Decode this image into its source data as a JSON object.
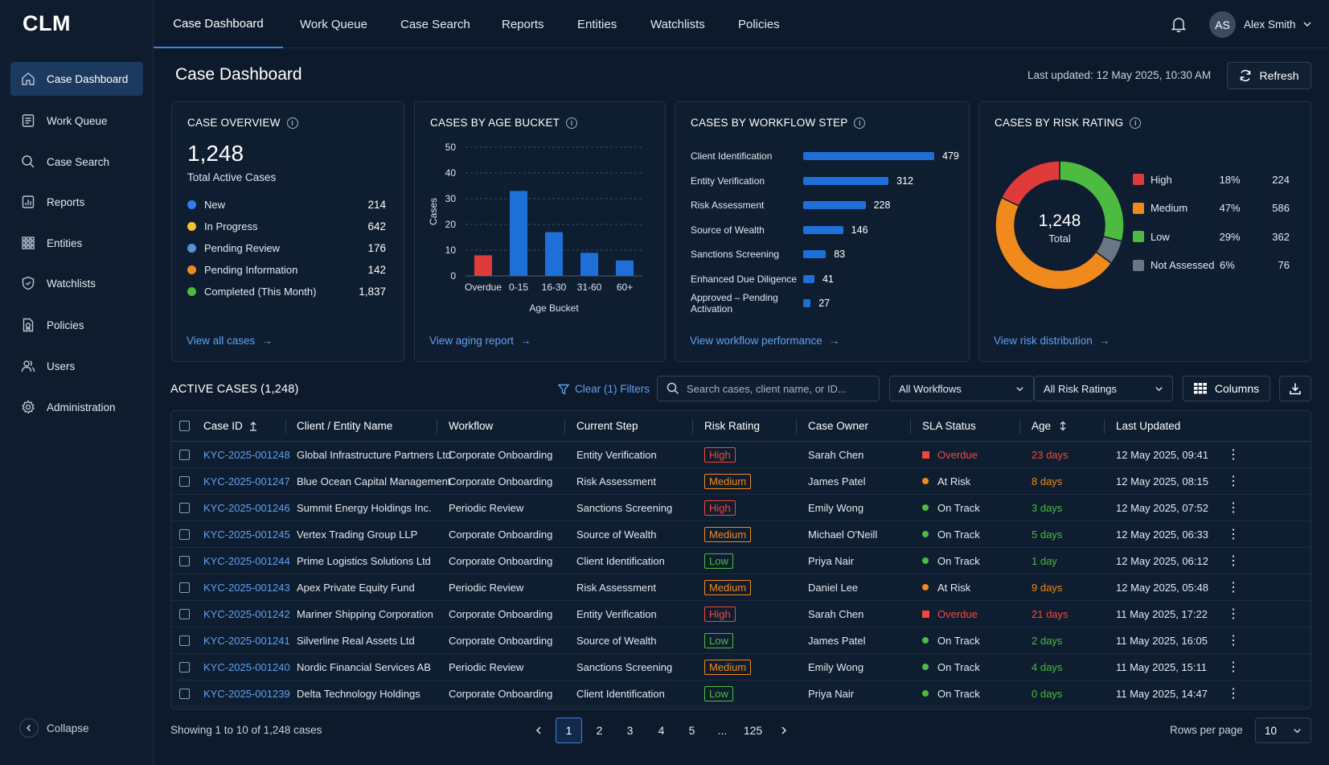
{
  "app": {
    "logo": "CLM"
  },
  "nav": {
    "tabs": [
      "Case Dashboard",
      "Work Queue",
      "Case Search",
      "Reports",
      "Entities",
      "Watchlists",
      "Policies"
    ]
  },
  "user": {
    "initials": "AS",
    "name": "Alex Smith"
  },
  "sidebar": {
    "items": [
      {
        "label": "Case Dashboard",
        "icon": "home-icon"
      },
      {
        "label": "Work Queue",
        "icon": "list-icon"
      },
      {
        "label": "Case Search",
        "icon": "search-icon"
      },
      {
        "label": "Reports",
        "icon": "report-icon"
      },
      {
        "label": "Entities",
        "icon": "grid-icon"
      },
      {
        "label": "Watchlists",
        "icon": "shield-icon"
      },
      {
        "label": "Policies",
        "icon": "policy-icon"
      },
      {
        "label": "Users",
        "icon": "users-icon"
      },
      {
        "label": "Administration",
        "icon": "gear-icon"
      }
    ],
    "collapse_label": "Collapse"
  },
  "header": {
    "title": "Case Dashboard",
    "last_updated": "Last updated: 12 May 2025, 10:30 AM",
    "refresh_label": "Refresh"
  },
  "overview": {
    "title": "CASE OVERVIEW",
    "total": "1,248",
    "subtitle": "Total Active Cases",
    "rows": [
      {
        "label": "New",
        "value": "214",
        "color": "#2f80ed"
      },
      {
        "label": "In Progress",
        "value": "642",
        "color": "#f2c12e"
      },
      {
        "label": "Pending Review",
        "value": "176",
        "color": "#5b8fd6"
      },
      {
        "label": "Pending Information",
        "value": "142",
        "color": "#f08a1c"
      },
      {
        "label": "Completed (This Month)",
        "value": "1,837",
        "color": "#4cbb3f"
      }
    ],
    "link": "View all cases"
  },
  "age_chart": {
    "title": "CASES BY AGE BUCKET",
    "link": "View aging report"
  },
  "chart_data": {
    "type": "bar",
    "categories": [
      "Overdue",
      "0-15",
      "16-30",
      "31-60",
      "60+"
    ],
    "values": [
      8,
      33,
      17,
      9,
      6
    ],
    "colors": [
      "#e03b3b",
      "#1f6fd8",
      "#1f6fd8",
      "#1f6fd8",
      "#1f6fd8"
    ],
    "xlabel": "Age Bucket",
    "ylabel": "Cases",
    "ylim": [
      0,
      50
    ],
    "yticks": [
      0,
      10,
      20,
      30,
      40,
      50
    ],
    "grid": true
  },
  "workflow": {
    "title": "CASES BY WORKFLOW STEP",
    "steps": [
      {
        "label": "Client Identification",
        "value": 479
      },
      {
        "label": "Entity Verification",
        "value": 312
      },
      {
        "label": "Risk Assessment",
        "value": 228
      },
      {
        "label": "Source of Wealth",
        "value": 146
      },
      {
        "label": "Sanctions Screening",
        "value": 83
      },
      {
        "label": "Enhanced Due Diligence",
        "value": 41
      },
      {
        "label": "Approved – Pending Activation",
        "value": 27
      }
    ],
    "link": "View workflow performance"
  },
  "risk": {
    "title": "CASES BY RISK RATING",
    "total": "1,248",
    "total_label": "Total",
    "segments": [
      {
        "label": "High",
        "pct": "18%",
        "count": "224",
        "value": 224,
        "color": "#e03b3b"
      },
      {
        "label": "Medium",
        "pct": "47%",
        "count": "586",
        "value": 586,
        "color": "#f08a1c"
      },
      {
        "label": "Low",
        "pct": "29%",
        "count": "362",
        "value": 362,
        "color": "#4cbb3f"
      },
      {
        "label": "Not Assessed",
        "pct": "6%",
        "count": "76",
        "value": 76,
        "color": "#6b7685"
      }
    ],
    "link": "View risk distribution"
  },
  "active": {
    "title": "ACTIVE CASES (1,248)",
    "clear_filters": "Clear (1) Filters",
    "search_placeholder": "Search cases, client name, or ID...",
    "workflow_filter": "All Workflows",
    "risk_filter": "All Risk Ratings",
    "columns_label": "Columns"
  },
  "table": {
    "headers": [
      "Case ID",
      "Client / Entity Name",
      "Workflow",
      "Current Step",
      "Risk Rating",
      "Case Owner",
      "SLA Status",
      "Age",
      "Last Updated"
    ],
    "rows": [
      {
        "id": "KYC-2025-001248",
        "client": "Global Infrastructure Partners Ltd",
        "workflow": "Corporate Onboarding",
        "step": "Entity Verification",
        "risk": "High",
        "owner": "Sarah Chen",
        "sla": "Overdue",
        "age": "23 days",
        "updated": "12 May 2025, 09:41"
      },
      {
        "id": "KYC-2025-001247",
        "client": "Blue Ocean Capital Management",
        "workflow": "Corporate Onboarding",
        "step": "Risk Assessment",
        "risk": "Medium",
        "owner": "James Patel",
        "sla": "At Risk",
        "age": "8 days",
        "updated": "12 May 2025, 08:15"
      },
      {
        "id": "KYC-2025-001246",
        "client": "Summit Energy Holdings Inc.",
        "workflow": "Periodic Review",
        "step": "Sanctions Screening",
        "risk": "High",
        "owner": "Emily Wong",
        "sla": "On Track",
        "age": "3 days",
        "updated": "12 May 2025, 07:52"
      },
      {
        "id": "KYC-2025-001245",
        "client": "Vertex Trading Group LLP",
        "workflow": "Corporate Onboarding",
        "step": "Source of Wealth",
        "risk": "Medium",
        "owner": "Michael O'Neill",
        "sla": "On Track",
        "age": "5 days",
        "updated": "12 May 2025, 06:33"
      },
      {
        "id": "KYC-2025-001244",
        "client": "Prime Logistics Solutions Ltd",
        "workflow": "Corporate Onboarding",
        "step": "Client Identification",
        "risk": "Low",
        "owner": "Priya Nair",
        "sla": "On Track",
        "age": "1 day",
        "updated": "12 May 2025, 06:12"
      },
      {
        "id": "KYC-2025-001243",
        "client": "Apex Private Equity Fund",
        "workflow": "Periodic Review",
        "step": "Risk Assessment",
        "risk": "Medium",
        "owner": "Daniel Lee",
        "sla": "At Risk",
        "age": "9 days",
        "updated": "12 May 2025, 05:48"
      },
      {
        "id": "KYC-2025-001242",
        "client": "Mariner Shipping Corporation",
        "workflow": "Corporate Onboarding",
        "step": "Entity Verification",
        "risk": "High",
        "owner": "Sarah Chen",
        "sla": "Overdue",
        "age": "21 days",
        "updated": "11 May 2025, 17:22"
      },
      {
        "id": "KYC-2025-001241",
        "client": "Silverline Real Assets Ltd",
        "workflow": "Corporate Onboarding",
        "step": "Source of Wealth",
        "risk": "Low",
        "owner": "James Patel",
        "sla": "On Track",
        "age": "2 days",
        "updated": "11 May 2025, 16:05"
      },
      {
        "id": "KYC-2025-001240",
        "client": "Nordic Financial Services AB",
        "workflow": "Periodic Review",
        "step": "Sanctions Screening",
        "risk": "Medium",
        "owner": "Emily Wong",
        "sla": "On Track",
        "age": "4 days",
        "updated": "11 May 2025, 15:11"
      },
      {
        "id": "KYC-2025-001239",
        "client": "Delta Technology Holdings",
        "workflow": "Corporate Onboarding",
        "step": "Client Identification",
        "risk": "Low",
        "owner": "Priya Nair",
        "sla": "On Track",
        "age": "0 days",
        "updated": "11 May 2025, 14:47"
      }
    ]
  },
  "colors": {
    "accent": "#3b82e6",
    "link": "#5ea1f0",
    "high": "#f0493b",
    "medium": "#f08a1c",
    "low": "#4cbb3f",
    "overdue": "#f0493b",
    "at_risk": "#f08a1c",
    "on_track": "#4cbb3f"
  },
  "pagination": {
    "showing": "Showing 1 to 10 of 1,248 cases",
    "pages": [
      "1",
      "2",
      "3",
      "4",
      "5",
      "...",
      "125"
    ],
    "rows_per_page_label": "Rows per page",
    "rows_per_page": "10"
  }
}
